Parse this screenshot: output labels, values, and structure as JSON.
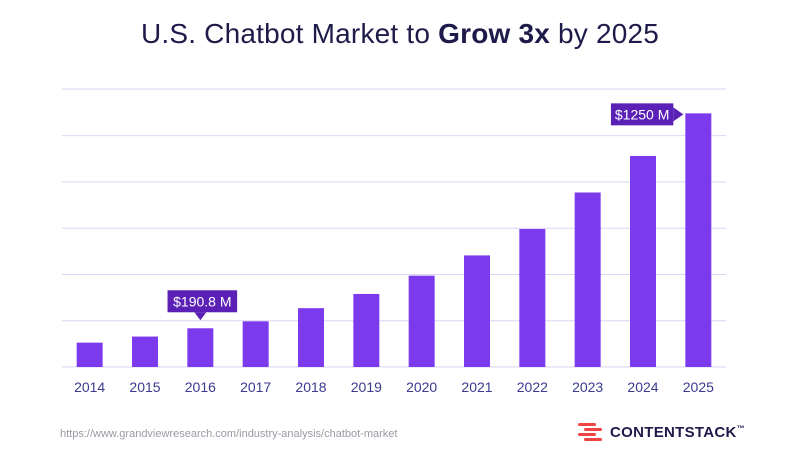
{
  "title": {
    "prefix": "U.S. Chatbot Market to ",
    "bold": "Grow 3x",
    "suffix": " by 2025"
  },
  "chart_data": {
    "type": "bar",
    "title": "U.S. Chatbot Market to Grow 3x by 2025",
    "categories": [
      "2014",
      "2015",
      "2016",
      "2017",
      "2018",
      "2019",
      "2020",
      "2021",
      "2022",
      "2023",
      "2024",
      "2025"
    ],
    "values": [
      120,
      150,
      190.8,
      225,
      290,
      360,
      450,
      550,
      680,
      860,
      1040,
      1250
    ],
    "ylim": [
      0,
      1370
    ],
    "gridlines": [
      0,
      228,
      456,
      684,
      912,
      1140,
      1370
    ],
    "callouts": [
      {
        "category": "2016",
        "label": "$190.8 M"
      },
      {
        "category": "2025",
        "label": "$1250 M"
      }
    ],
    "bar_color": "#7c3aed",
    "callout_color": "#5b21b6",
    "grid_color": "#d9d6f5",
    "tick_color": "#3b3b8f"
  },
  "footer": {
    "source": "https://www.grandviewresearch.com/industry-analysis/chatbot-market",
    "brand": "CONTENTSTACK",
    "brand_tm": "™",
    "brand_icon": "contentstack-logo-icon"
  }
}
